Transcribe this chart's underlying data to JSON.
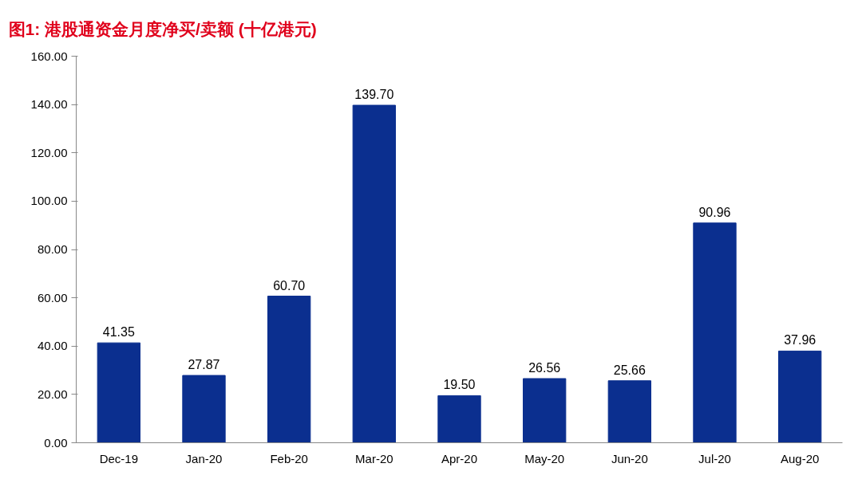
{
  "chart_data": {
    "type": "bar",
    "title": "图1: 港股通资金月度净买/卖额 (十亿港元)",
    "categories": [
      "Dec-19",
      "Jan-20",
      "Feb-20",
      "Mar-20",
      "Apr-20",
      "May-20",
      "Jun-20",
      "Jul-20",
      "Aug-20"
    ],
    "values": [
      41.35,
      27.87,
      60.7,
      139.7,
      19.5,
      26.56,
      25.66,
      90.96,
      37.96
    ],
    "value_labels": [
      "41.35",
      "27.87",
      "60.70",
      "139.70",
      "19.50",
      "26.56",
      "25.66",
      "90.96",
      "37.96"
    ],
    "color": "#0b2f8f",
    "ylim": [
      0,
      160
    ],
    "yticks": [
      {
        "value": 0,
        "label": "0.00"
      },
      {
        "value": 20,
        "label": "20.00"
      },
      {
        "value": 40,
        "label": "40.00"
      },
      {
        "value": 60,
        "label": "60.00"
      },
      {
        "value": 80,
        "label": "80.00"
      },
      {
        "value": 100,
        "label": "100.00"
      },
      {
        "value": 120,
        "label": "120.00"
      },
      {
        "value": 140,
        "label": "140.00"
      },
      {
        "value": 160,
        "label": "160.00"
      }
    ],
    "grid": false
  }
}
